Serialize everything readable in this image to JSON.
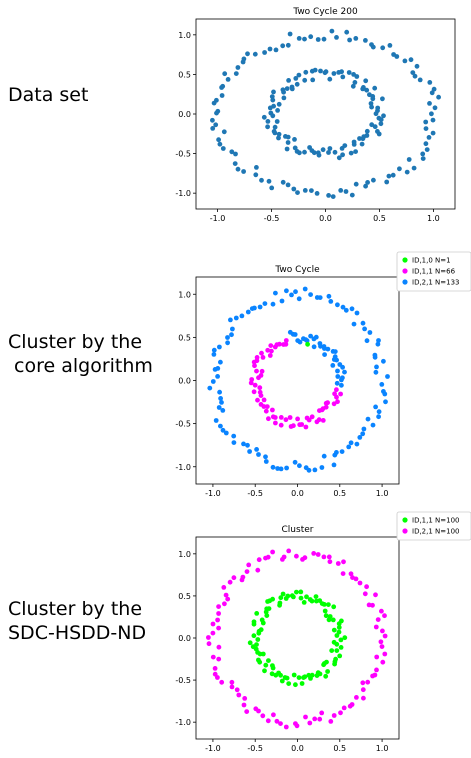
{
  "labels": {
    "dataset": "Data set",
    "core": "Cluster by the\n core algorithm",
    "sdc": "Cluster by the\nSDC-HSDD-ND"
  },
  "chart_data": [
    {
      "type": "scatter",
      "title": "Two Cycle 200",
      "xlim": [
        -1.2,
        1.2
      ],
      "ylim": [
        -1.2,
        1.2
      ],
      "xticks": [
        "-1.0",
        "-0.5",
        "0.0",
        "0.5",
        "1.0"
      ],
      "yticks": [
        "1.0",
        "0.5",
        "0.0",
        "-0.5",
        "-1.0"
      ],
      "xtick_values": [
        -1.0,
        -0.5,
        0.0,
        0.5,
        1.0
      ],
      "ytick_values": [
        1.0,
        0.5,
        0.0,
        -0.5,
        -1.0
      ],
      "legend": [],
      "series": [
        {
          "color": "#1f77b4",
          "shape": "ring",
          "r": 1.0,
          "n": 100,
          "phase": 0.13
        },
        {
          "color": "#1f77b4",
          "shape": "ring",
          "r": 0.5,
          "n": 100,
          "phase": 0.41
        }
      ]
    },
    {
      "type": "scatter",
      "title": "Two Cycle",
      "xlim": [
        -1.2,
        1.2
      ],
      "ylim": [
        -1.2,
        1.2
      ],
      "xticks": [
        "-1.0",
        "-0.5",
        "0.0",
        "0.5",
        "1.0"
      ],
      "yticks": [
        "1.0",
        "0.5",
        "0.0",
        "-0.5",
        "-1.0"
      ],
      "xtick_values": [
        -1.0,
        -0.5,
        0.0,
        0.5,
        1.0
      ],
      "ytick_values": [
        1.0,
        0.5,
        0.0,
        -0.5,
        -1.0
      ],
      "legend": [
        {
          "label": "ID,1,0 N=1",
          "color": "#00ff00"
        },
        {
          "label": "ID,1,1 N=66",
          "color": "#ff00ff"
        },
        {
          "label": "ID,2,1 N=133",
          "color": "#0a84ff"
        }
      ],
      "series": [
        {
          "color": "#0a84ff",
          "shape": "ring",
          "r": 1.0,
          "n": 100,
          "phase": 0.27
        },
        {
          "color": "#0a84ff",
          "shape": "arc",
          "r": 0.5,
          "n": 33,
          "a0": -0.15,
          "a1": 1.75
        },
        {
          "color": "#ff00ff",
          "shape": "arc",
          "r": 0.5,
          "n": 66,
          "a0": 1.8,
          "a1": 6.1
        },
        {
          "color": "#00ff00",
          "shape": "point",
          "x": 0.12,
          "y": 0.42
        }
      ]
    },
    {
      "type": "scatter",
      "title": "Cluster",
      "xlim": [
        -1.2,
        1.2
      ],
      "ylim": [
        -1.2,
        1.2
      ],
      "xticks": [
        "-1.0",
        "-0.5",
        "0.0",
        "0.5",
        "1.0"
      ],
      "yticks": [
        "1.0",
        "0.5",
        "0.0",
        "-0.5",
        "-1.0"
      ],
      "xtick_values": [
        -1.0,
        -0.5,
        0.0,
        0.5,
        1.0
      ],
      "ytick_values": [
        1.0,
        0.5,
        0.0,
        -0.5,
        -1.0
      ],
      "legend": [
        {
          "label": "ID,1,1 N=100",
          "color": "#00ff00"
        },
        {
          "label": "ID,2,1 N=100",
          "color": "#ff00ff"
        }
      ],
      "series": [
        {
          "color": "#ff00ff",
          "shape": "ring",
          "r": 1.0,
          "n": 100,
          "phase": 0.33
        },
        {
          "color": "#00ff00",
          "shape": "ring",
          "r": 0.5,
          "n": 100,
          "phase": 0.77
        }
      ]
    }
  ]
}
